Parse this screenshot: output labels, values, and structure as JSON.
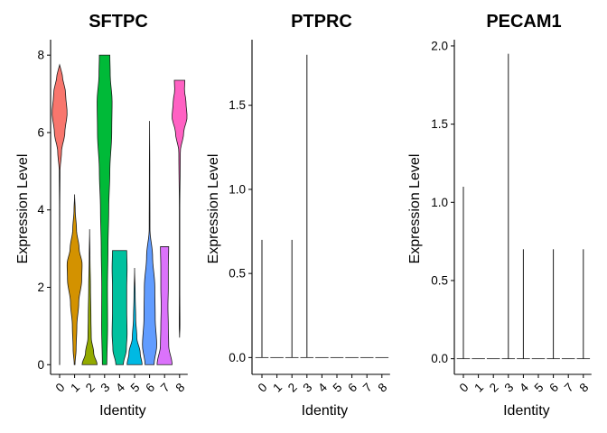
{
  "chart_data": [
    {
      "type": "violin",
      "title": "SFTPC",
      "xlabel": "Identity",
      "ylabel": "Expression Level",
      "categories": [
        "0",
        "1",
        "2",
        "3",
        "4",
        "5",
        "6",
        "7",
        "8"
      ],
      "ylim": [
        -0.25,
        8.4
      ],
      "yticks": [
        0,
        2,
        4,
        6,
        8
      ],
      "ytick_labels": [
        "0",
        "2",
        "4",
        "6",
        "8"
      ],
      "colors": [
        "#F8766D",
        "#D39200",
        "#93AA00",
        "#00BA38",
        "#00C19F",
        "#00B9E3",
        "#619CFF",
        "#DB72FB",
        "#FF61C3"
      ],
      "violins": [
        {
          "category": "0",
          "min": 0.0,
          "max": 7.75,
          "mode": 6.6,
          "profile": [
            [
              0,
              0.01
            ],
            [
              2,
              0.01
            ],
            [
              4,
              0.02
            ],
            [
              5,
              0.05
            ],
            [
              5.5,
              0.25
            ],
            [
              6,
              0.7
            ],
            [
              6.5,
              1.0
            ],
            [
              7,
              0.8
            ],
            [
              7.5,
              0.35
            ],
            [
              7.75,
              0
            ]
          ]
        },
        {
          "category": "1",
          "min": 0.0,
          "max": 4.4,
          "mode": 2.5,
          "profile": [
            [
              0,
              0.05
            ],
            [
              0.4,
              0.2
            ],
            [
              1,
              0.3
            ],
            [
              1.6,
              0.55
            ],
            [
              2.2,
              0.95
            ],
            [
              2.6,
              1.0
            ],
            [
              3.0,
              0.6
            ],
            [
              3.5,
              0.25
            ],
            [
              4.0,
              0.08
            ],
            [
              4.4,
              0
            ]
          ]
        },
        {
          "category": "2",
          "min": 0.0,
          "max": 3.5,
          "mode": 0.35,
          "profile": [
            [
              0,
              1.0
            ],
            [
              0.3,
              0.55
            ],
            [
              0.7,
              0.22
            ],
            [
              1.2,
              0.18
            ],
            [
              2.0,
              0.12
            ],
            [
              2.8,
              0.05
            ],
            [
              3.5,
              0
            ]
          ]
        },
        {
          "category": "3",
          "min": 0.0,
          "max": 8.0,
          "mode": 6.5,
          "profile": [
            [
              0,
              0.3
            ],
            [
              1,
              0.4
            ],
            [
              2,
              0.38
            ],
            [
              3,
              0.45
            ],
            [
              4,
              0.55
            ],
            [
              5,
              0.7
            ],
            [
              6,
              0.95
            ],
            [
              6.8,
              1.0
            ],
            [
              7.5,
              0.75
            ],
            [
              8.0,
              0.7
            ]
          ]
        },
        {
          "category": "4",
          "min": 0.0,
          "max": 2.95,
          "mode": 0.5,
          "profile": [
            [
              0,
              0.5
            ],
            [
              0.4,
              0.9
            ],
            [
              0.8,
              1.0
            ],
            [
              1.4,
              0.95
            ],
            [
              2.0,
              0.95
            ],
            [
              2.5,
              1.0
            ],
            [
              2.95,
              0.95
            ]
          ]
        },
        {
          "category": "5",
          "min": 0.0,
          "max": 2.5,
          "mode": 0.0,
          "profile": [
            [
              0,
              1.0
            ],
            [
              0.3,
              0.75
            ],
            [
              0.7,
              0.3
            ],
            [
              1.2,
              0.15
            ],
            [
              1.8,
              0.08
            ],
            [
              2.5,
              0
            ]
          ]
        },
        {
          "category": "6",
          "min": 0.0,
          "max": 6.3,
          "mode": 0.3,
          "profile": [
            [
              0,
              0.6
            ],
            [
              0.5,
              0.95
            ],
            [
              1.2,
              0.75
            ],
            [
              2.0,
              0.7
            ],
            [
              2.8,
              0.4
            ],
            [
              3.5,
              0.05
            ],
            [
              5,
              0.03
            ],
            [
              6.3,
              0
            ]
          ]
        },
        {
          "category": "7",
          "min": 0.0,
          "max": 3.05,
          "mode": 0.0,
          "profile": [
            [
              0,
              1.0
            ],
            [
              0.5,
              0.55
            ],
            [
              1.0,
              0.5
            ],
            [
              1.5,
              0.45
            ],
            [
              2.0,
              0.5
            ],
            [
              2.5,
              0.5
            ],
            [
              3.05,
              0.55
            ]
          ]
        },
        {
          "category": "8",
          "min": 0.7,
          "max": 7.35,
          "mode": 6.4,
          "profile": [
            [
              0.7,
              0
            ],
            [
              1,
              0.05
            ],
            [
              2,
              0.03
            ],
            [
              4,
              0.03
            ],
            [
              5.5,
              0.1
            ],
            [
              6,
              0.55
            ],
            [
              6.4,
              1.0
            ],
            [
              6.8,
              0.85
            ],
            [
              7.1,
              0.65
            ],
            [
              7.35,
              0.7
            ]
          ]
        }
      ]
    },
    {
      "type": "violin",
      "title": "PTPRC",
      "xlabel": "Identity",
      "ylabel": "Expression Level",
      "categories": [
        "0",
        "1",
        "2",
        "3",
        "4",
        "5",
        "6",
        "7",
        "8"
      ],
      "ylim": [
        -0.1,
        1.89
      ],
      "yticks": [
        0.0,
        0.5,
        1.0,
        1.5
      ],
      "ytick_labels": [
        "0.0",
        "0.5",
        "1.0",
        "1.5"
      ],
      "colors": [
        "#F8766D",
        "#D39200",
        "#93AA00",
        "#00BA38",
        "#00C19F",
        "#00B9E3",
        "#619CFF",
        "#DB72FB",
        "#FF61C3"
      ],
      "violins": [
        {
          "category": "0",
          "min": 0.0,
          "max": 0.7
        },
        {
          "category": "1",
          "min": 0.0,
          "max": 0.0
        },
        {
          "category": "2",
          "min": 0.0,
          "max": 0.7
        },
        {
          "category": "3",
          "min": 0.0,
          "max": 1.8
        },
        {
          "category": "4",
          "min": 0.0,
          "max": 0.0
        },
        {
          "category": "5",
          "min": 0.0,
          "max": 0.0
        },
        {
          "category": "6",
          "min": 0.0,
          "max": 0.0
        },
        {
          "category": "7",
          "min": 0.0,
          "max": 0.0
        },
        {
          "category": "8",
          "min": 0.0,
          "max": 0.0
        }
      ]
    },
    {
      "type": "violin",
      "title": "PECAM1",
      "xlabel": "Identity",
      "ylabel": "Expression Level",
      "categories": [
        "0",
        "1",
        "2",
        "3",
        "4",
        "5",
        "6",
        "7",
        "8"
      ],
      "ylim": [
        -0.1,
        2.04
      ],
      "yticks": [
        0.0,
        0.5,
        1.0,
        1.5,
        2.0
      ],
      "ytick_labels": [
        "0.0",
        "0.5",
        "1.0",
        "1.5",
        "2.0"
      ],
      "colors": [
        "#F8766D",
        "#D39200",
        "#93AA00",
        "#00BA38",
        "#00C19F",
        "#00B9E3",
        "#619CFF",
        "#DB72FB",
        "#FF61C3"
      ],
      "violins": [
        {
          "category": "0",
          "min": 0.0,
          "max": 1.1
        },
        {
          "category": "1",
          "min": 0.0,
          "max": 0.0
        },
        {
          "category": "2",
          "min": 0.0,
          "max": 0.0
        },
        {
          "category": "3",
          "min": 0.0,
          "max": 1.95
        },
        {
          "category": "4",
          "min": 0.0,
          "max": 0.7
        },
        {
          "category": "5",
          "min": 0.0,
          "max": 0.0
        },
        {
          "category": "6",
          "min": 0.0,
          "max": 0.7
        },
        {
          "category": "7",
          "min": 0.0,
          "max": 0.0
        },
        {
          "category": "8",
          "min": 0.0,
          "max": 0.7
        }
      ]
    }
  ]
}
